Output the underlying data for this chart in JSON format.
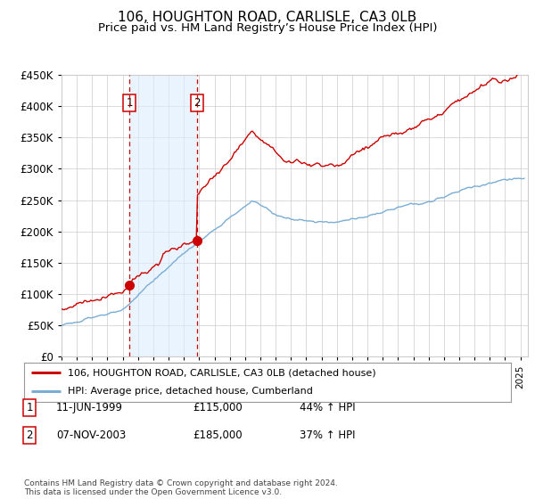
{
  "title": "106, HOUGHTON ROAD, CARLISLE, CA3 0LB",
  "subtitle": "Price paid vs. HM Land Registry’s House Price Index (HPI)",
  "ylim": [
    0,
    450000
  ],
  "xlim_start": 1995.0,
  "xlim_end": 2025.5,
  "sale1_date": 1999.44,
  "sale1_price": 115000,
  "sale2_date": 2003.85,
  "sale2_price": 185000,
  "legend_property": "106, HOUGHTON ROAD, CARLISLE, CA3 0LB (detached house)",
  "legend_hpi": "HPI: Average price, detached house, Cumberland",
  "footnote": "Contains HM Land Registry data © Crown copyright and database right 2024.\nThis data is licensed under the Open Government Licence v3.0.",
  "property_line_color": "#cc0000",
  "hpi_line_color": "#7aadd4",
  "shade_color": "#ddeeff",
  "vline_color": "#cc0000",
  "marker_color": "#cc0000",
  "grid_color": "#cccccc",
  "bg_color": "#ffffff",
  "title_fontsize": 11,
  "subtitle_fontsize": 9.5,
  "hpi_seed": 101,
  "prop_seed": 202,
  "hpi_noise_scale": 600,
  "prop_noise_scale": 1500
}
